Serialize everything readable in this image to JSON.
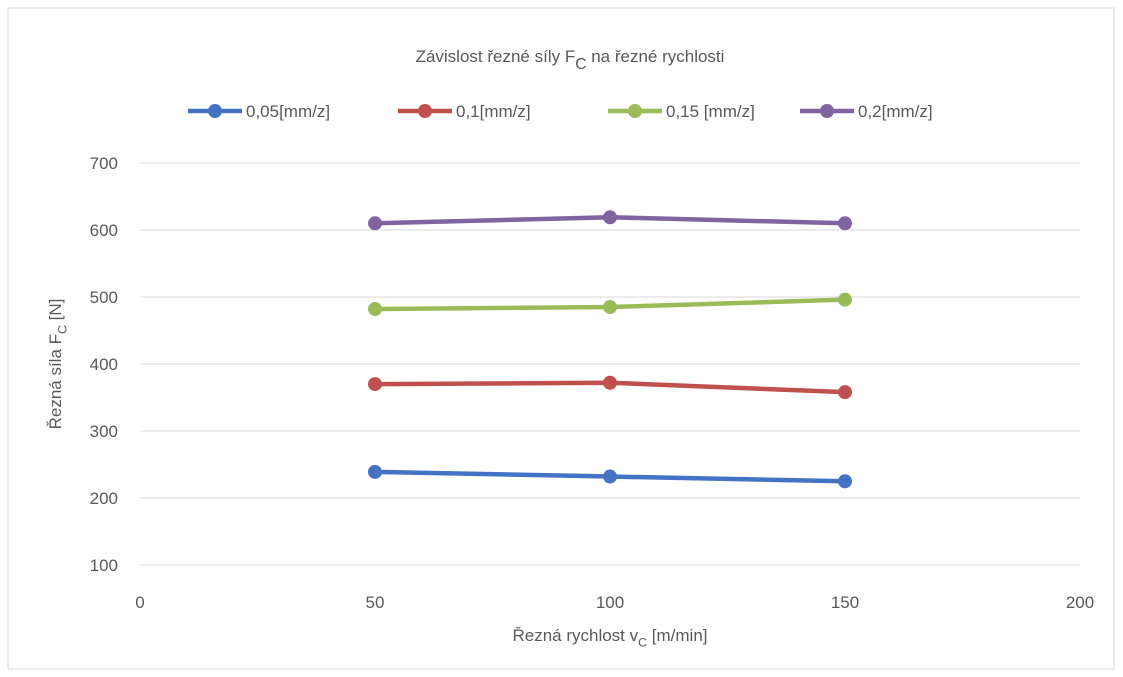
{
  "chart_data": {
    "type": "line",
    "title": [
      {
        "text": "Závislost řezné síly F"
      },
      {
        "text": "C",
        "sub": true
      },
      {
        "text": " na řezné rychlosti"
      }
    ],
    "xlabel": [
      {
        "text": "Řezná rychlost v"
      },
      {
        "text": "C",
        "sub": true
      },
      {
        "text": " [m/min]"
      }
    ],
    "ylabel": [
      {
        "text": "Řezná síla F"
      },
      {
        "text": "C",
        "sub": true
      },
      {
        "text": " [N]"
      }
    ],
    "x": [
      50,
      100,
      150
    ],
    "series": [
      {
        "name": "0,05[mm/z]",
        "color": "#4472c4",
        "values": [
          239,
          232,
          225
        ]
      },
      {
        "name": "0,1[mm/z]",
        "color": "#c0504d",
        "values": [
          370,
          372,
          358
        ]
      },
      {
        "name": "0,15 [mm/z]",
        "color": "#9bbb59",
        "values": [
          482,
          485,
          496
        ]
      },
      {
        "name": "0,2[mm/z]",
        "color": "#8064a2",
        "values": [
          610,
          619,
          610
        ]
      }
    ],
    "xlim": [
      0,
      200
    ],
    "xticks": [
      0,
      50,
      100,
      150,
      200
    ],
    "ylim": [
      100,
      700
    ],
    "yticks": [
      100,
      200,
      300,
      400,
      500,
      600,
      700
    ],
    "grid": true,
    "legend": "top"
  }
}
